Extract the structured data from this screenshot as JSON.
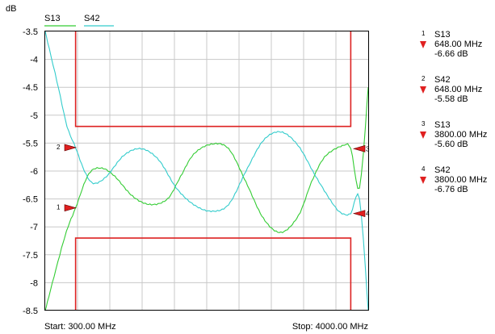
{
  "chart_data": {
    "type": "line",
    "ylabel": "dB",
    "ylim": [
      -8.5,
      -3.5
    ],
    "yticks": [
      "-3.5",
      "-4",
      "-4.5",
      "-5",
      "-5.5",
      "-6",
      "-6.5",
      "-7",
      "-7.5",
      "-8",
      "-8.5"
    ],
    "xlim": [
      300,
      4000
    ],
    "start_label": "Start: 300.00 MHz",
    "stop_label": "Stop: 4000.00 MHz",
    "grid": true,
    "series": [
      {
        "name": "S13",
        "color": "#33cc33",
        "x": [
          300,
          520,
          648,
          800,
          950,
          1100,
          1300,
          1500,
          1700,
          1850,
          2000,
          2200,
          2400,
          2600,
          2800,
          3000,
          3200,
          3350,
          3500,
          3700,
          3800,
          3900,
          4000
        ],
        "y": [
          -8.5,
          -7.2,
          -6.66,
          -6.05,
          -5.95,
          -6.1,
          -6.45,
          -6.6,
          -6.5,
          -6.1,
          -5.7,
          -5.52,
          -5.6,
          -6.2,
          -6.85,
          -7.1,
          -6.8,
          -6.2,
          -5.75,
          -5.55,
          -5.6,
          -6.3,
          -4.5
        ]
      },
      {
        "name": "S42",
        "color": "#33cccc",
        "x": [
          300,
          450,
          550,
          648,
          750,
          850,
          1000,
          1200,
          1400,
          1600,
          1800,
          2000,
          2200,
          2400,
          2600,
          2800,
          3000,
          3200,
          3400,
          3600,
          3700,
          3800,
          3900,
          4000
        ],
        "y": [
          -3.5,
          -4.5,
          -5.2,
          -5.58,
          -6.0,
          -6.22,
          -6.1,
          -5.72,
          -5.6,
          -5.8,
          -6.3,
          -6.6,
          -6.72,
          -6.6,
          -6.0,
          -5.45,
          -5.3,
          -5.55,
          -6.1,
          -6.6,
          -6.76,
          -6.76,
          -6.5,
          -8.5
        ]
      }
    ],
    "limit_lines": {
      "color": "#dd2222",
      "upper": {
        "x": [
          648,
          3800
        ],
        "y_floor": -5.2
      },
      "lower": {
        "x": [
          648,
          3800
        ],
        "y_ceiling": -7.2
      }
    },
    "markers": [
      {
        "index": "1",
        "trace": "S13",
        "freq": "648.00 MHz",
        "value": "-6.66 dB",
        "x": 648,
        "y": -6.66,
        "side": "left"
      },
      {
        "index": "2",
        "trace": "S42",
        "freq": "648.00 MHz",
        "value": "-5.58 dB",
        "x": 648,
        "y": -5.58,
        "side": "left"
      },
      {
        "index": "3",
        "trace": "S13",
        "freq": "3800.00 MHz",
        "value": "-5.60 dB",
        "x": 3800,
        "y": -5.6,
        "side": "right"
      },
      {
        "index": "4",
        "trace": "S42",
        "freq": "3800.00 MHz",
        "value": "-6.76 dB",
        "x": 3800,
        "y": -6.76,
        "side": "right"
      }
    ]
  },
  "colors": {
    "marker": "#e02020",
    "grid": "#c8c8c8"
  }
}
